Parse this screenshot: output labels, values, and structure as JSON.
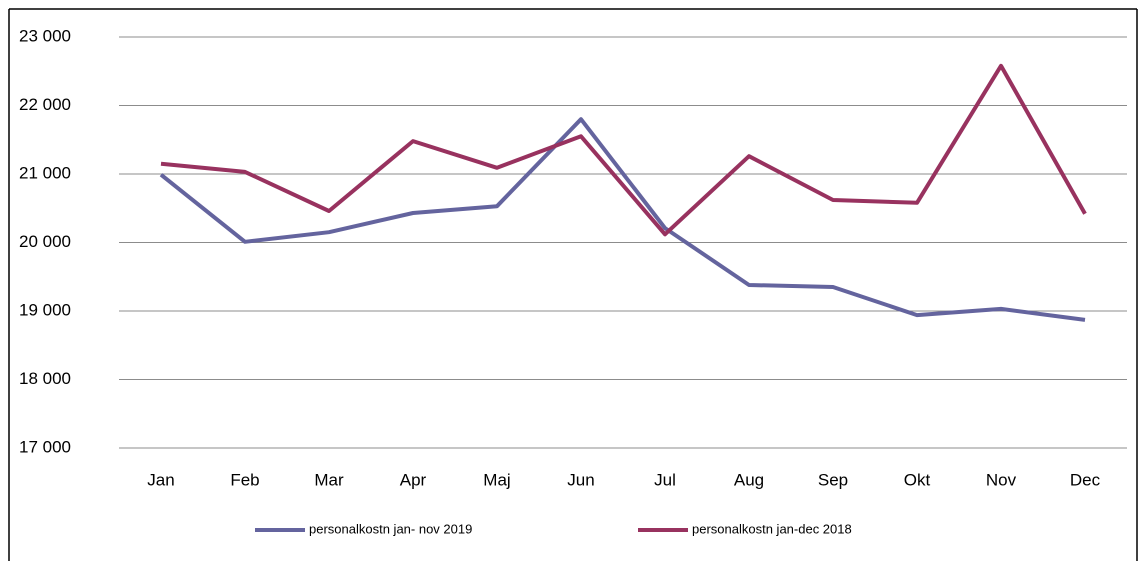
{
  "chart_data": {
    "type": "line",
    "categories": [
      "Jan",
      "Feb",
      "Mar",
      "Apr",
      "Maj",
      "Jun",
      "Jul",
      "Aug",
      "Sep",
      "Okt",
      "Nov",
      "Dec"
    ],
    "series": [
      {
        "name": "personalkostn jan- nov 2019",
        "color": "#64649e",
        "values": [
          20990,
          20010,
          20150,
          20430,
          20530,
          21800,
          20210,
          19380,
          19350,
          18940,
          19030,
          18870
        ]
      },
      {
        "name": "personalkostn jan-dec 2018",
        "color": "#98325f",
        "values": [
          21150,
          21030,
          20460,
          21480,
          21090,
          21550,
          20120,
          21260,
          20620,
          20580,
          22580,
          20420
        ]
      }
    ],
    "ylim": [
      17000,
      23000
    ],
    "yticks": [
      {
        "value": 17000,
        "label": "17 000"
      },
      {
        "value": 18000,
        "label": "18 000"
      },
      {
        "value": 19000,
        "label": "19 000"
      },
      {
        "value": 20000,
        "label": "20 000"
      },
      {
        "value": 21000,
        "label": "21 000"
      },
      {
        "value": 22000,
        "label": "22 000"
      },
      {
        "value": 23000,
        "label": "23 000"
      }
    ],
    "grid": true,
    "legend": "bottom"
  }
}
